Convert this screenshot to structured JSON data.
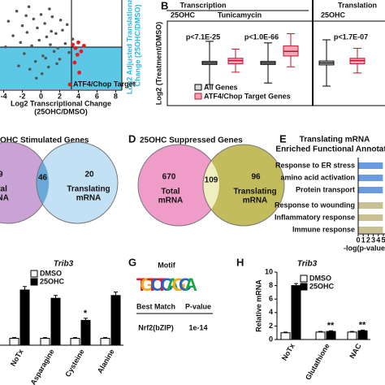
{
  "panel_a": {
    "type": "scatter",
    "x_label": [
      "Log2 Transcriptional Change",
      "(25OHC/DMSO)"
    ],
    "y_label": [
      "Log2 Adjusted Translational",
      "Change (25OHC/DMSO)"
    ],
    "xlim": [
      -4.4,
      8.4
    ],
    "xticks": [
      -4,
      -2,
      0,
      2,
      4,
      6,
      8
    ],
    "ylim": [
      -3.6,
      4.4
    ],
    "series": [
      {
        "color": "#555555",
        "x": [
          -3.5,
          -3,
          -2.6,
          -2.2,
          -2,
          -1.8,
          -1.5,
          -1.3,
          -1,
          -0.8,
          -0.6,
          -0.4,
          -0.2,
          0,
          0.2,
          0.4,
          0.6,
          0.8,
          1,
          1.2,
          1.4,
          1.6,
          1.8,
          2,
          2.3,
          2.6,
          3,
          3.4,
          -1.2,
          0.1,
          0.9,
          1.7,
          -2.4,
          2.8,
          -0.5,
          0.5,
          1.1,
          -1.6,
          2.1,
          -3.8
        ],
        "y": [
          2.5,
          1.2,
          3.4,
          0.6,
          2.1,
          -0.4,
          1.5,
          3.8,
          0.3,
          2.7,
          -1.1,
          1.9,
          0.8,
          3.1,
          -0.6,
          2.3,
          1.1,
          -1.6,
          0.4,
          2.9,
          -0.2,
          1.4,
          0.1,
          -0.9,
          1.7,
          0.5,
          -0.3,
          0.9,
          -1.8,
          -2.2,
          3.6,
          -1.3,
          -1.5,
          2.2,
          -2.6,
          -0.8,
          1.6,
          3,
          2.6,
          0.2
        ]
      },
      {
        "name": "ATF4/Chop Target",
        "color": "#e8191f",
        "x": [
          3.4,
          3.7,
          4,
          4.3,
          3.9,
          4.6,
          3.6,
          4.1
        ],
        "y": [
          0.4,
          0.1,
          0.6,
          -0.2,
          -0.5,
          0.3,
          -1.2,
          -2.1
        ]
      }
    ]
  },
  "panel_b": {
    "letter": "B",
    "headers": [
      "Transcription",
      "Translation"
    ],
    "subheaders": [
      "25OHC",
      "Tunicamycin",
      "25OHC"
    ],
    "p_values": [
      "p<7.1E-25",
      "p<1.0E-66",
      "p<1.7E-07"
    ],
    "y_label": "Log2 (Treatment/DMSO)",
    "ylim": [
      -5,
      5
    ],
    "series": [
      {
        "name": "All Genes",
        "color": "#d9d9d9",
        "boxes": [
          {
            "low": -2.8,
            "q1": -0.2,
            "median": 0,
            "q3": 0.2,
            "high": 2.8
          },
          {
            "low": -2.6,
            "q1": -0.2,
            "median": 0,
            "q3": 0.2,
            "high": 2.6
          },
          {
            "low": -3,
            "q1": -0.25,
            "median": 0,
            "q3": 0.25,
            "high": 3
          }
        ]
      },
      {
        "name": "ATF4/Chop Target Genes",
        "color": "#f4a7b9",
        "boxes": [
          {
            "low": -1.2,
            "q1": -0.1,
            "median": 0.3,
            "q3": 0.6,
            "high": 1.8
          },
          {
            "low": -0.5,
            "q1": 0.9,
            "median": 1.5,
            "q3": 2.2,
            "high": 3.8
          },
          {
            "low": -1.3,
            "q1": -0.1,
            "median": 0.3,
            "q3": 0.6,
            "high": 1.9
          }
        ]
      }
    ]
  },
  "panel_c": {
    "title": "OHC Stimulated Genes",
    "left": "09",
    "overlap": "46",
    "right": "20",
    "left_label": [
      "otal",
      "RNA"
    ],
    "right_label": [
      "Translating",
      "mRNA"
    ]
  },
  "panel_d": {
    "letter": "D",
    "title": "25OHC Suppressed Genes",
    "left": "670",
    "overlap": "109",
    "right": "96",
    "left_label": [
      "Total",
      "mRNA"
    ],
    "right_label": [
      "Translating",
      "mRNA"
    ]
  },
  "panel_e": {
    "type": "bar",
    "letter": "E",
    "title": [
      "Translating mRNA",
      "Enriched Functional Annotatio"
    ],
    "categories": [
      "Response to ER stress",
      "amino acid activation",
      "Protein transport",
      "Response to wounding",
      "Inflammatory response",
      "Immune response"
    ],
    "values": [
      4.9,
      4.9,
      4.9,
      4.9,
      4.9,
      4.9
    ],
    "colors": [
      "#6a9be0",
      "#6a9be0",
      "#6a9be0",
      "#c8bf93",
      "#c8bf93",
      "#c8bf93"
    ],
    "xlim": [
      0,
      5
    ],
    "xticks": [
      0,
      1,
      2,
      3,
      4,
      5
    ],
    "x_label": "-log(p-value"
  },
  "panel_f": {
    "type": "bar",
    "title": "Trib3",
    "categories": [
      "NoTx",
      "Asparagine",
      "Cysteine",
      "Alanine"
    ],
    "ylim": [
      0,
      10
    ],
    "series": [
      {
        "name": "DMSO",
        "color": "#ffffff",
        "values": [
          1,
          1,
          1,
          1
        ],
        "errors": [
          0.1,
          0.1,
          0.1,
          0.1
        ]
      },
      {
        "name": "25OHC",
        "color": "#000000",
        "values": [
          8,
          6.8,
          3.6,
          7.2
        ],
        "errors": [
          0.5,
          0.4,
          0.3,
          0.5
        ]
      }
    ],
    "annotations": [
      {
        "index": 2,
        "text": "*"
      }
    ]
  },
  "panel_g": {
    "letter": "G",
    "title": "Motif",
    "motif": "TGTCTCAGCA",
    "headers": [
      "Best Match",
      "P-value"
    ],
    "row": [
      "Nrf2(bZIP)",
      "1e-14"
    ]
  },
  "panel_h": {
    "type": "bar",
    "letter": "H",
    "title": "Trib3",
    "y_label": "Relative mRNA",
    "categories": [
      "NoTx",
      "Glutathione",
      "NAC"
    ],
    "ylim": [
      0,
      10
    ],
    "yticks": [
      0,
      2,
      4,
      6,
      8,
      10
    ],
    "series": [
      {
        "name": "DMSO",
        "color": "#ffffff",
        "values": [
          1,
          1.1,
          1.1
        ],
        "errors": [
          0.1,
          0.1,
          0.1
        ]
      },
      {
        "name": "25OHC",
        "color": "#000000",
        "values": [
          8,
          1.2,
          1.3
        ],
        "errors": [
          0.3,
          0.1,
          0.1
        ]
      }
    ],
    "annotations": [
      {
        "index": 1,
        "text": "**"
      },
      {
        "index": 2,
        "text": "**"
      }
    ]
  }
}
